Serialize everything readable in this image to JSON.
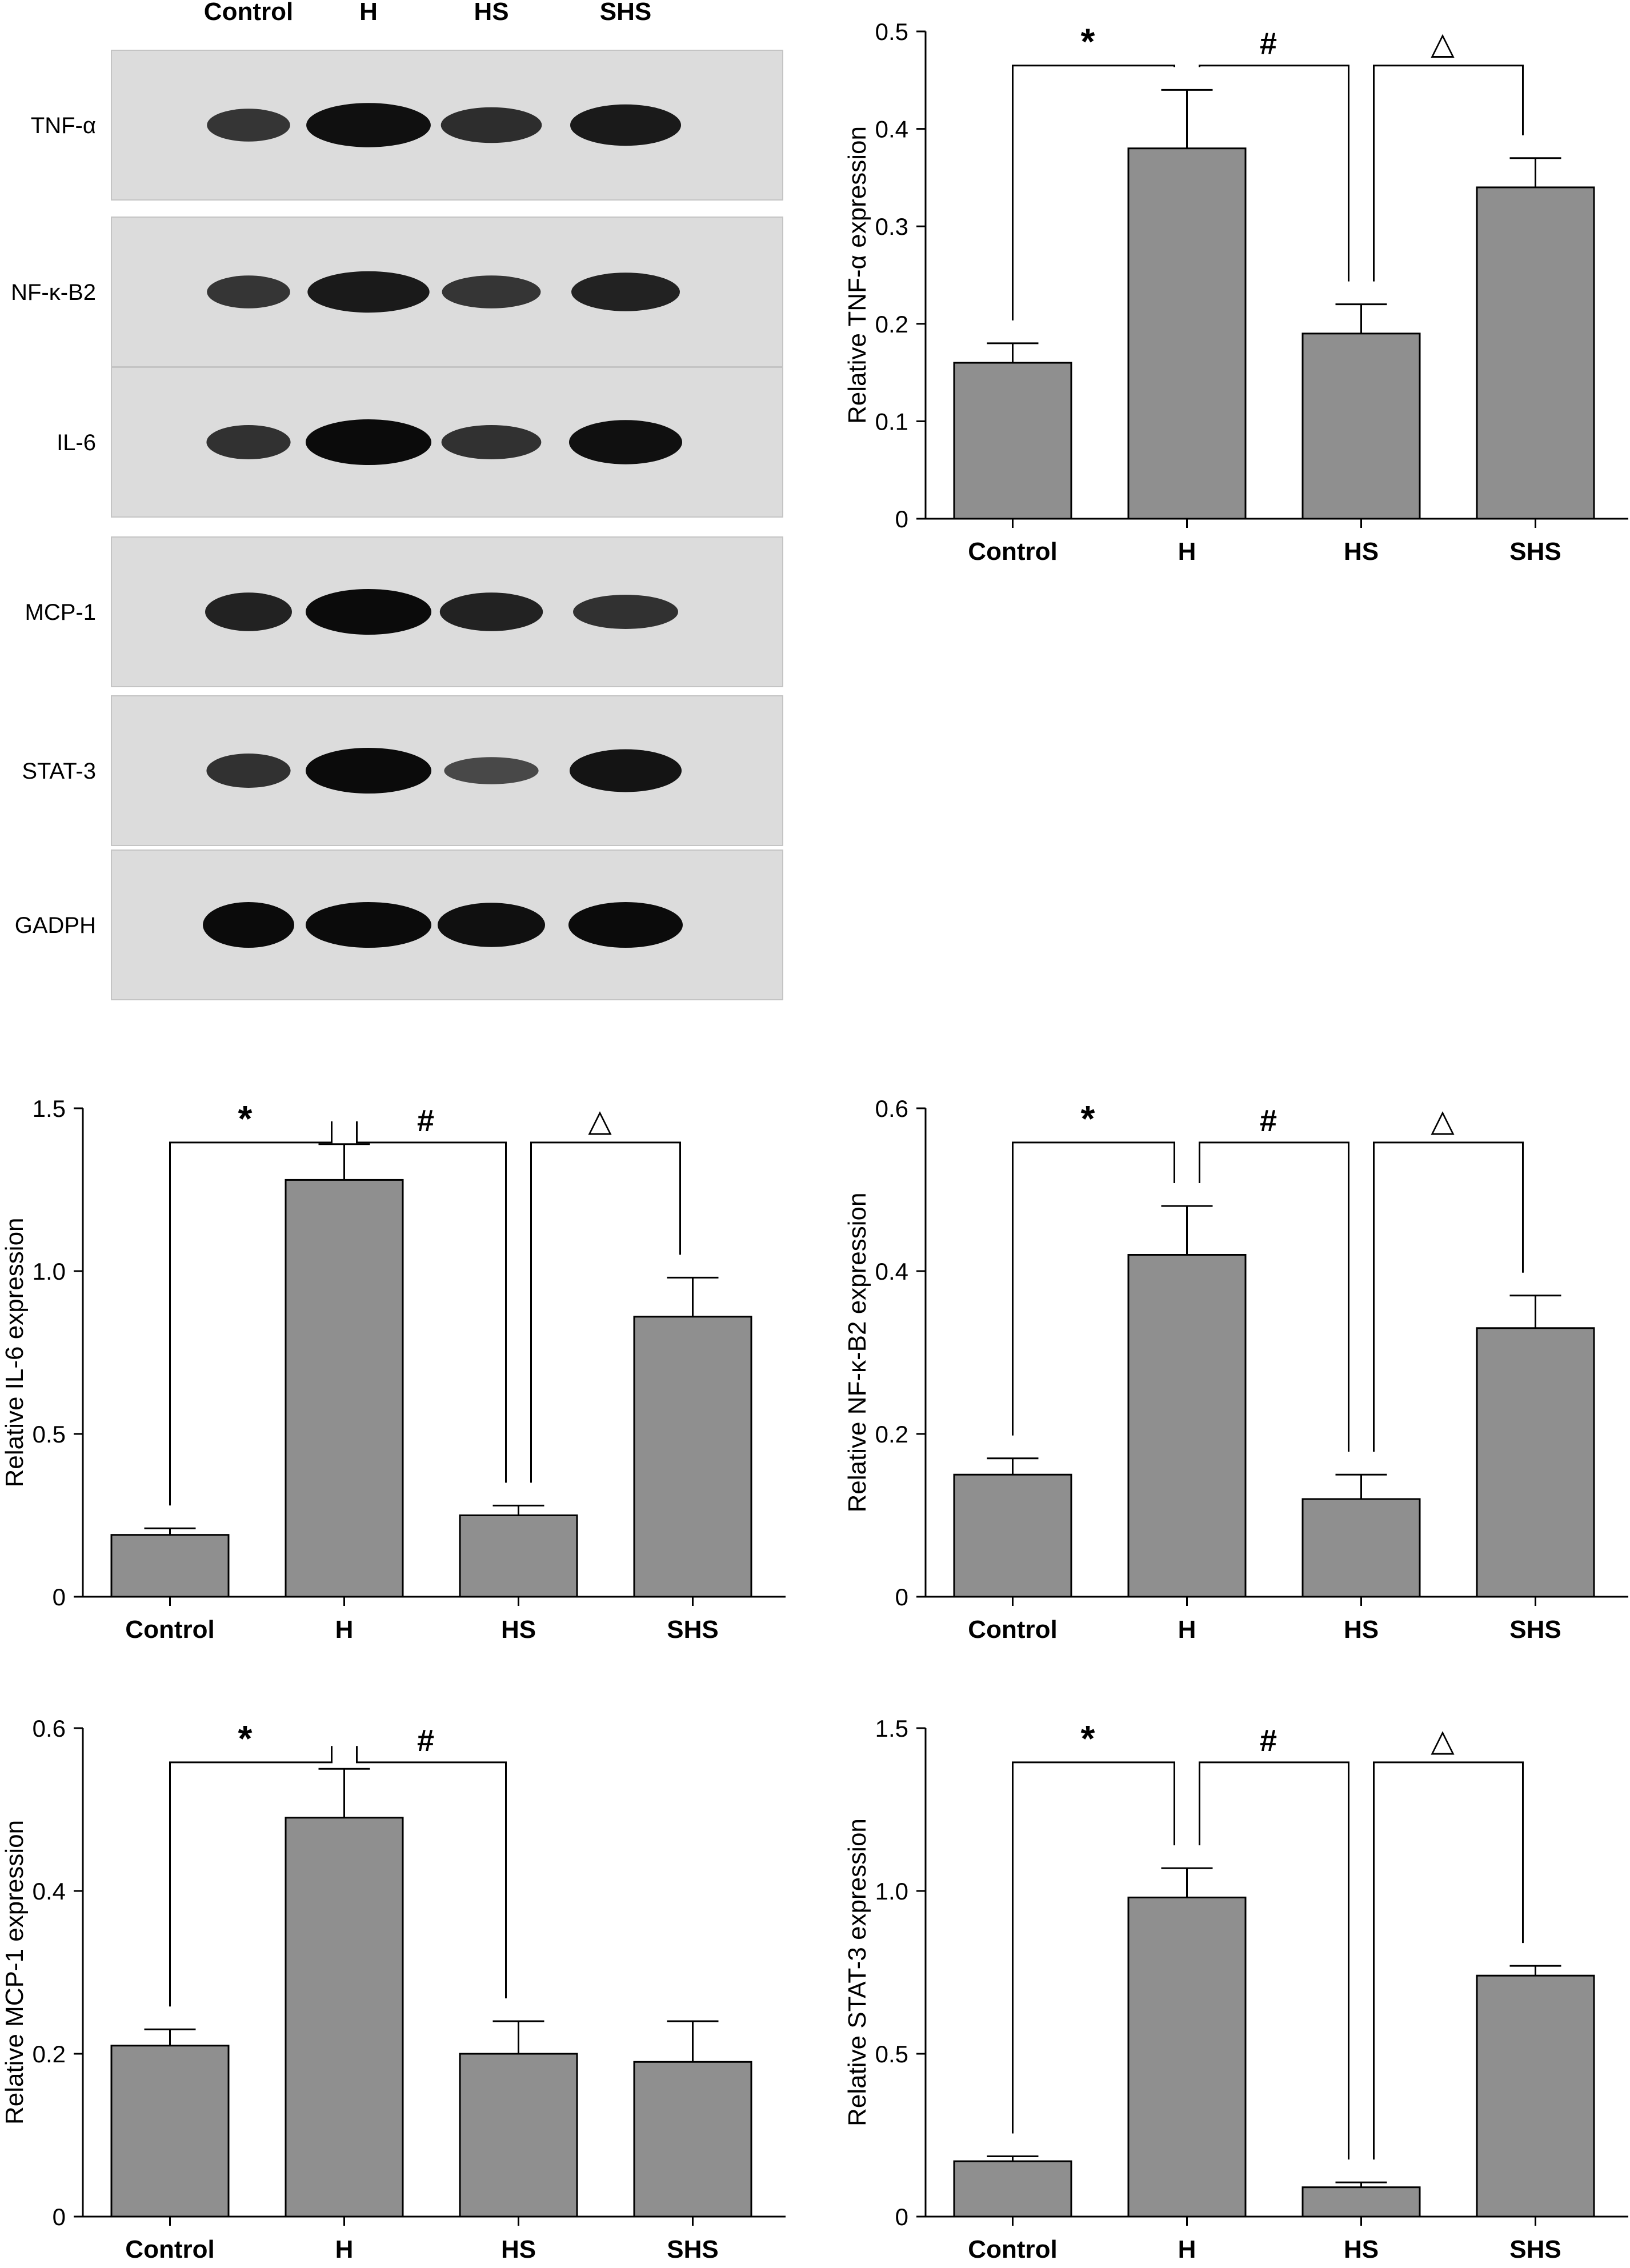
{
  "blot": {
    "lane_labels": [
      "Control",
      "H",
      "HS",
      "SHS"
    ],
    "rows": [
      {
        "label": "TNF-α",
        "intensity": [
          0.55,
          0.95,
          0.65,
          0.85
        ]
      },
      {
        "label": "NF-κ-B2",
        "intensity": [
          0.55,
          0.85,
          0.55,
          0.75
        ]
      },
      {
        "label": "IL-6",
        "intensity": [
          0.6,
          1.0,
          0.6,
          0.95
        ]
      },
      {
        "label": "MCP-1",
        "intensity": [
          0.75,
          1.0,
          0.75,
          0.6
        ]
      },
      {
        "label": "STAT-3",
        "intensity": [
          0.6,
          1.0,
          0.35,
          0.9
        ]
      },
      {
        "label": "GADPH",
        "intensity": [
          1.0,
          1.0,
          0.95,
          1.0
        ]
      }
    ]
  },
  "chart_data": [
    {
      "type": "bar",
      "categories": [
        "Control",
        "H",
        "HS",
        "SHS"
      ],
      "values": [
        0.16,
        0.38,
        0.19,
        0.34
      ],
      "errors": [
        0.02,
        0.06,
        0.03,
        0.03
      ],
      "ylabel": "Relative TNF-α expression",
      "ylim": [
        0,
        0.5
      ],
      "yticks": [
        "0",
        "0.1",
        "0.2",
        "0.3",
        "0.4",
        "0.5"
      ],
      "brackets": [
        {
          "from": 0,
          "to": 1,
          "symbol": "*"
        },
        {
          "from": 1,
          "to": 2,
          "symbol": "#"
        },
        {
          "from": 2,
          "to": 3,
          "symbol": "△"
        }
      ]
    },
    {
      "type": "bar",
      "categories": [
        "Control",
        "H",
        "HS",
        "SHS"
      ],
      "values": [
        0.19,
        1.28,
        0.25,
        0.86
      ],
      "errors": [
        0.02,
        0.11,
        0.03,
        0.12
      ],
      "ylabel": "Relative IL-6 expression",
      "ylim": [
        0,
        1.5
      ],
      "yticks": [
        "0",
        "0.5",
        "1.0",
        "1.5"
      ],
      "brackets": [
        {
          "from": 0,
          "to": 1,
          "symbol": "*"
        },
        {
          "from": 1,
          "to": 2,
          "symbol": "#"
        },
        {
          "from": 2,
          "to": 3,
          "symbol": "△"
        }
      ]
    },
    {
      "type": "bar",
      "categories": [
        "Control",
        "H",
        "HS",
        "SHS"
      ],
      "values": [
        0.15,
        0.42,
        0.12,
        0.33
      ],
      "errors": [
        0.02,
        0.06,
        0.03,
        0.04
      ],
      "ylabel": "Relative NF-κ-B2 expression",
      "ylim": [
        0,
        0.6
      ],
      "yticks": [
        "0",
        "0.2",
        "0.4",
        "0.6"
      ],
      "brackets": [
        {
          "from": 0,
          "to": 1,
          "symbol": "*"
        },
        {
          "from": 1,
          "to": 2,
          "symbol": "#"
        },
        {
          "from": 2,
          "to": 3,
          "symbol": "△"
        }
      ]
    },
    {
      "type": "bar",
      "categories": [
        "Control",
        "H",
        "HS",
        "SHS"
      ],
      "values": [
        0.21,
        0.49,
        0.2,
        0.19
      ],
      "errors": [
        0.02,
        0.06,
        0.04,
        0.05
      ],
      "ylabel": "Relative MCP-1 expression",
      "ylim": [
        0,
        0.6
      ],
      "yticks": [
        "0",
        "0.2",
        "0.4",
        "0.6"
      ],
      "brackets": [
        {
          "from": 0,
          "to": 1,
          "symbol": "*"
        },
        {
          "from": 1,
          "to": 2,
          "symbol": "#"
        }
      ]
    },
    {
      "type": "bar",
      "categories": [
        "Control",
        "H",
        "HS",
        "SHS"
      ],
      "values": [
        0.17,
        0.98,
        0.09,
        0.74
      ],
      "errors": [
        0.015,
        0.09,
        0.015,
        0.03
      ],
      "ylabel": "Relative STAT-3 expression",
      "ylim": [
        0,
        1.5
      ],
      "yticks": [
        "0",
        "0.5",
        "1.0",
        "1.5"
      ],
      "brackets": [
        {
          "from": 0,
          "to": 1,
          "symbol": "*"
        },
        {
          "from": 1,
          "to": 2,
          "symbol": "#"
        },
        {
          "from": 2,
          "to": 3,
          "symbol": "△"
        }
      ]
    }
  ]
}
